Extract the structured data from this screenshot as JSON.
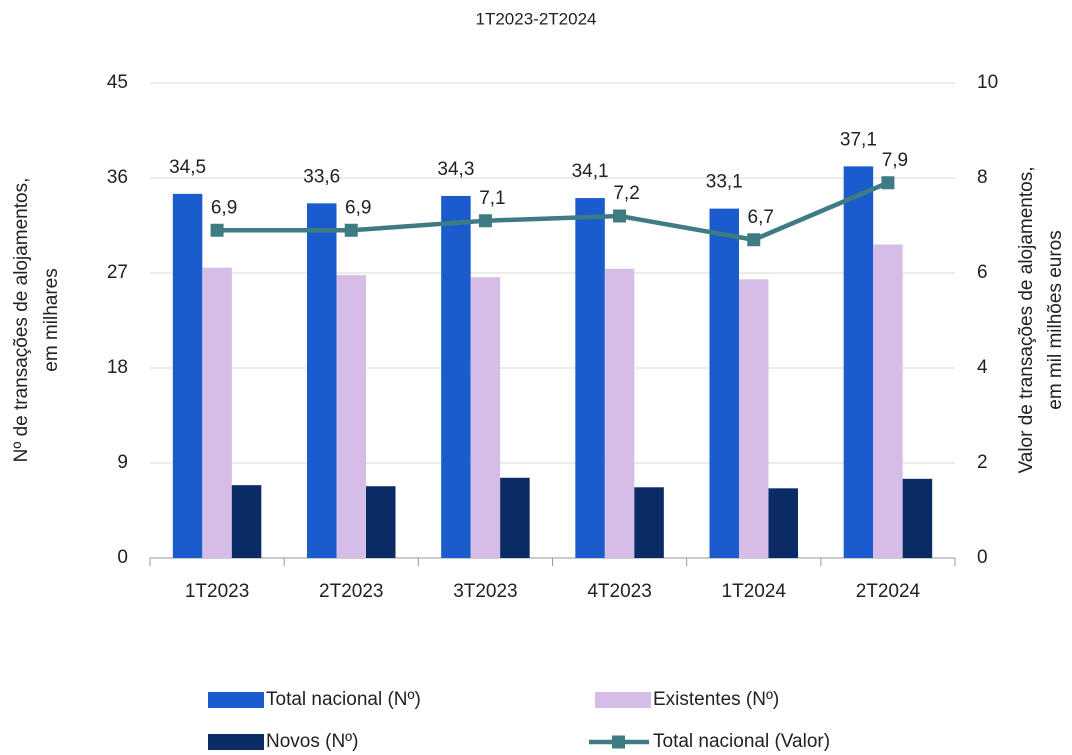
{
  "chart_data": {
    "type": "bar",
    "title": "1T2023-2T2024",
    "y_label": [
      "Nº  de transações de alojamentos,",
      "em milhares"
    ],
    "y2_label": [
      "Valor de transações de alojamentos,",
      "em mil milhões euros"
    ],
    "categories": [
      "1T2023",
      "2T2023",
      "3T2023",
      "4T2023",
      "1T2024",
      "2T2024"
    ],
    "ylim": [
      0,
      45
    ],
    "yticks": [
      0,
      9,
      18,
      27,
      36,
      45
    ],
    "y2lim": [
      0,
      10
    ],
    "y2ticks": [
      0,
      2,
      4,
      6,
      8,
      10
    ],
    "grid": true,
    "legend": "bottom",
    "series": [
      {
        "name": "Total nacional (Nº)",
        "type": "bar",
        "color": "#1a5ccc",
        "values": [
          34.5,
          33.6,
          34.3,
          34.1,
          33.1,
          37.1
        ],
        "value_labels": [
          "34,5",
          "33,6",
          "34,3",
          "34,1",
          "33,1",
          "37,1"
        ]
      },
      {
        "name": "Existentes (Nº)",
        "type": "bar",
        "color": "#d5bde8",
        "values": [
          27.5,
          26.8,
          26.6,
          27.4,
          26.4,
          29.7
        ]
      },
      {
        "name": "Novos (Nº)",
        "type": "bar",
        "color": "#0b2b66",
        "values": [
          6.9,
          6.8,
          7.6,
          6.7,
          6.6,
          7.5
        ]
      },
      {
        "name": "Total nacional (Valor)",
        "type": "line",
        "axis": "y2",
        "color": "#3f7b83",
        "values": [
          6.9,
          6.9,
          7.1,
          7.2,
          6.7,
          7.9
        ],
        "value_labels": [
          "6,9",
          "6,9",
          "7,1",
          "7,2",
          "6,7",
          "7,9"
        ]
      }
    ]
  }
}
